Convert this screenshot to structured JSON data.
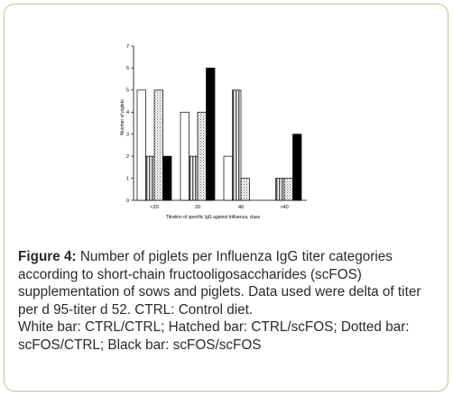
{
  "chart_data": {
    "type": "bar",
    "categories": [
      "<20",
      "20",
      "40",
      ">40"
    ],
    "series": [
      {
        "name": "CTRL/CTRL",
        "values": [
          5,
          4,
          2,
          0
        ],
        "pattern": "white"
      },
      {
        "name": "CTRL/scFOS",
        "values": [
          2,
          2,
          5,
          1
        ],
        "pattern": "hatched"
      },
      {
        "name": "scFOS/CTRL",
        "values": [
          5,
          4,
          1,
          1
        ],
        "pattern": "dotted"
      },
      {
        "name": "scFOS/scFOS",
        "values": [
          2,
          6,
          0,
          3
        ],
        "pattern": "black"
      }
    ],
    "title": "",
    "xlabel": "Titration of specific IgG against Influenza, class",
    "ylabel": "Number of piglets",
    "ylim": [
      0,
      7
    ],
    "yticks": [
      "0",
      "1",
      "2",
      "3",
      "4",
      "5",
      "6",
      "7"
    ],
    "grid": false,
    "legend": "none"
  },
  "caption": {
    "figure_label": "Figure 4:",
    "text": " Number of piglets per Influenza IgG titer categories according to short-chain fructooligosaccharides (scFOS) supplementation of sows and piglets. Data used were delta of titer per d 95-titer d 52. CTRL: Control diet.",
    "key": "White bar: CTRL/CTRL; Hatched bar: CTRL/scFOS; Dotted bar: scFOS/CTRL; Black bar: scFOS/scFOS"
  },
  "colors": {
    "border": "#b9c98a",
    "text": "#2a2a2a",
    "axis": "#000000"
  }
}
